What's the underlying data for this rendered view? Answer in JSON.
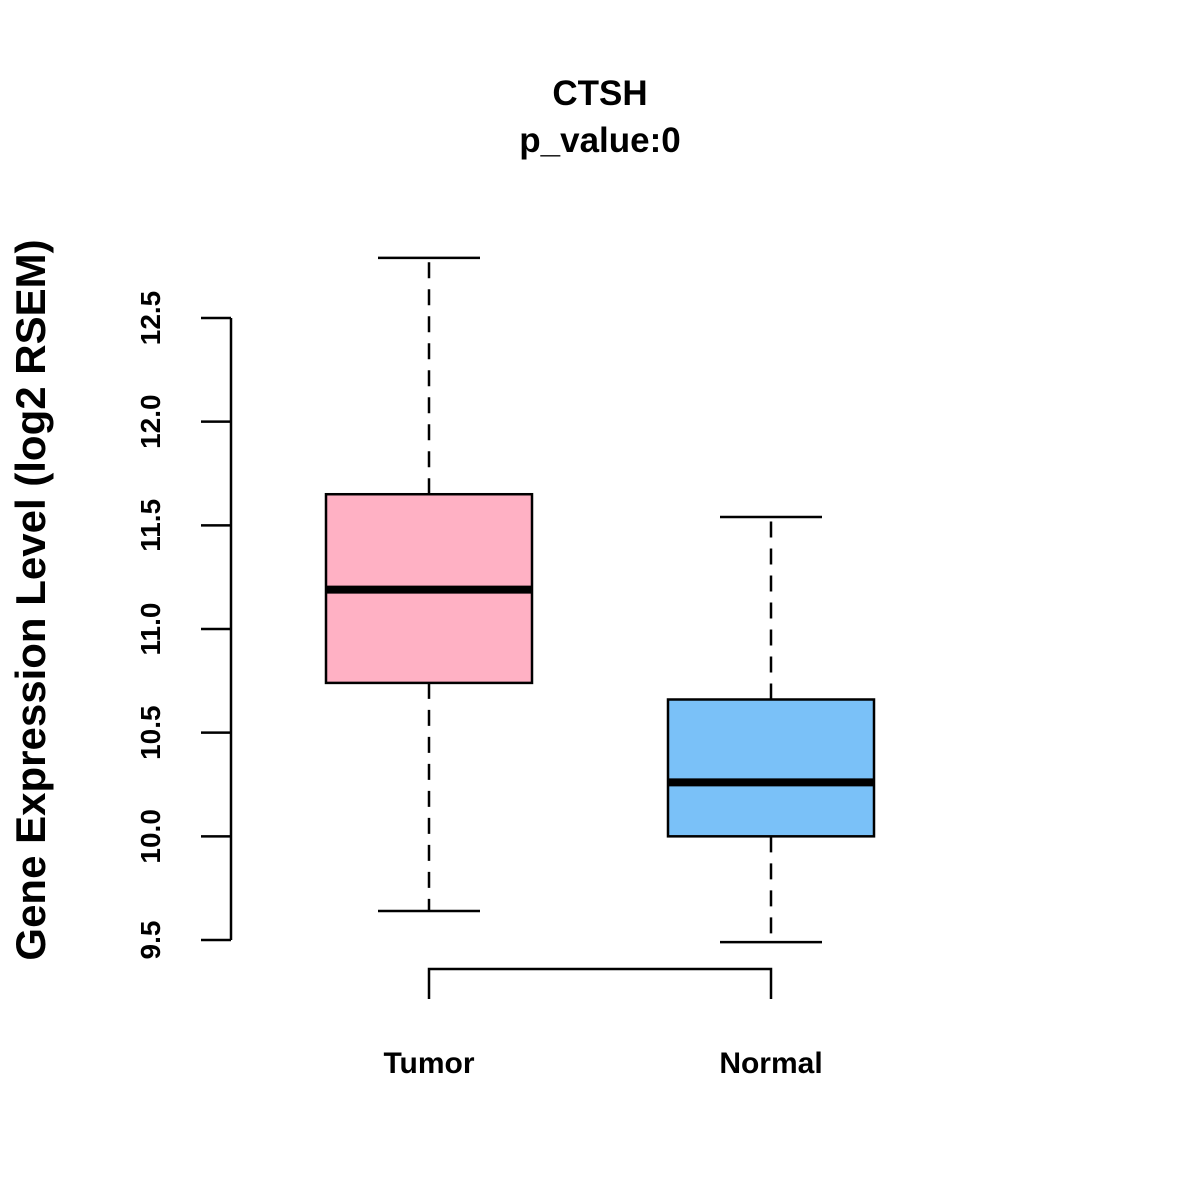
{
  "chart_data": {
    "type": "boxplot",
    "title": "CTSH",
    "subtitle": "p_value:0",
    "xlabel": "",
    "ylabel": "Gene Expression Level (log2 RSEM)",
    "ylim": [
      9.5,
      12.5
    ],
    "yticks": [
      9.5,
      10.0,
      10.5,
      11.0,
      11.5,
      12.0,
      12.5
    ],
    "ytick_labels": [
      "9.5",
      "10.0",
      "10.5",
      "11.0",
      "11.5",
      "12.0",
      "12.5"
    ],
    "grid": false,
    "legend": "none",
    "categories": [
      "Tumor",
      "Normal"
    ],
    "series": [
      {
        "name": "Tumor",
        "whisker_low": 9.64,
        "q1": 10.74,
        "median": 11.19,
        "q3": 11.65,
        "whisker_high": 12.79,
        "color": "#FFB1C4"
      },
      {
        "name": "Normal",
        "whisker_low": 9.49,
        "q1": 10.0,
        "median": 10.26,
        "q3": 10.66,
        "whisker_high": 11.54,
        "color": "#7AC1F8"
      }
    ],
    "bracket": {
      "between": [
        "Tumor",
        "Normal"
      ]
    }
  }
}
